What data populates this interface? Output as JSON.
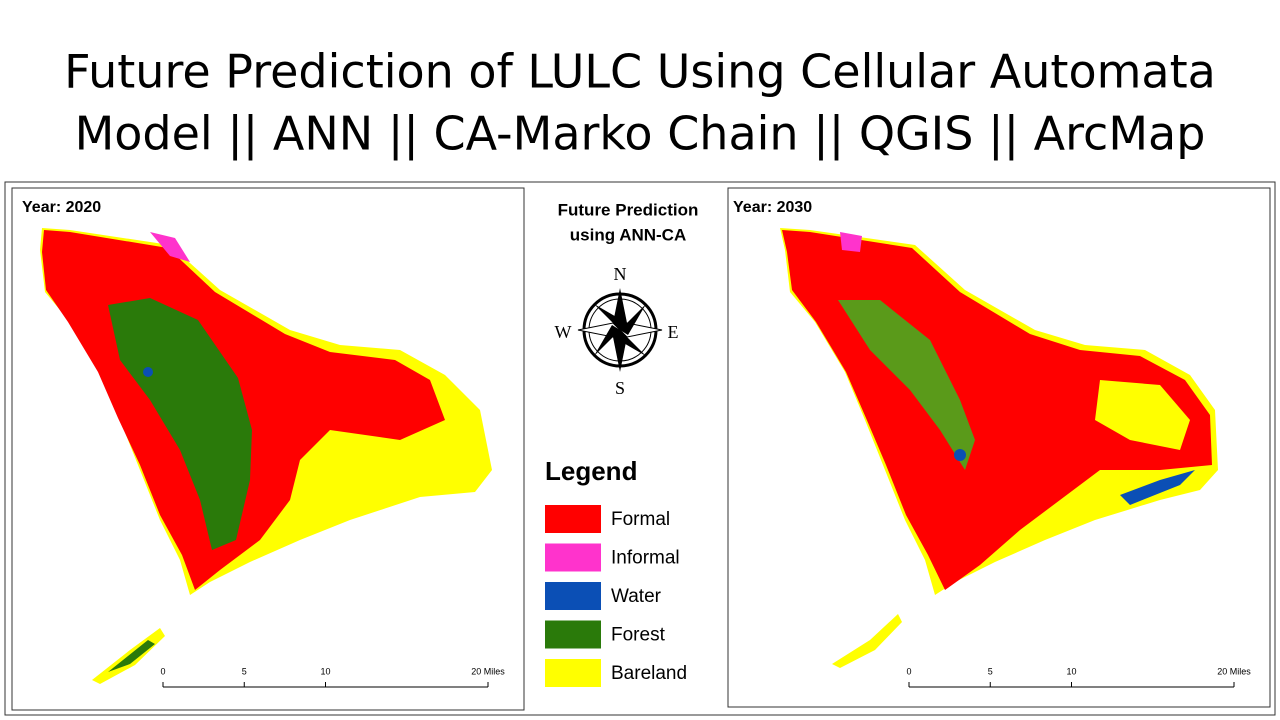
{
  "title": {
    "line1": "Future Prediction of LULC Using Cellular Automata",
    "line2": "Model || ANN || CA-Marko Chain || QGIS || ArcMap"
  },
  "maps": [
    {
      "year_label": "Year: 2020",
      "scale_ticks": [
        0,
        5,
        10,
        {
          "value": 20,
          "label": "20 Miles"
        }
      ]
    },
    {
      "year_label": "Year: 2030",
      "scale_ticks": [
        0,
        5,
        10,
        {
          "value": 20,
          "label": "20 Miles"
        }
      ]
    }
  ],
  "center": {
    "heading_line1": "Future Prediction",
    "heading_line2": "using ANN-CA"
  },
  "compass": {
    "n": "N",
    "e": "E",
    "s": "S",
    "w": "W"
  },
  "legend": {
    "title": "Legend",
    "items": [
      {
        "label": "Formal",
        "color": "#ff0000"
      },
      {
        "label": "Informal",
        "color": "#ff33cc"
      },
      {
        "label": "Water",
        "color": "#0b4fb5"
      },
      {
        "label": "Forest",
        "color": "#2a7a0a"
      },
      {
        "label": "Bareland",
        "color": "#ffff00"
      }
    ]
  }
}
